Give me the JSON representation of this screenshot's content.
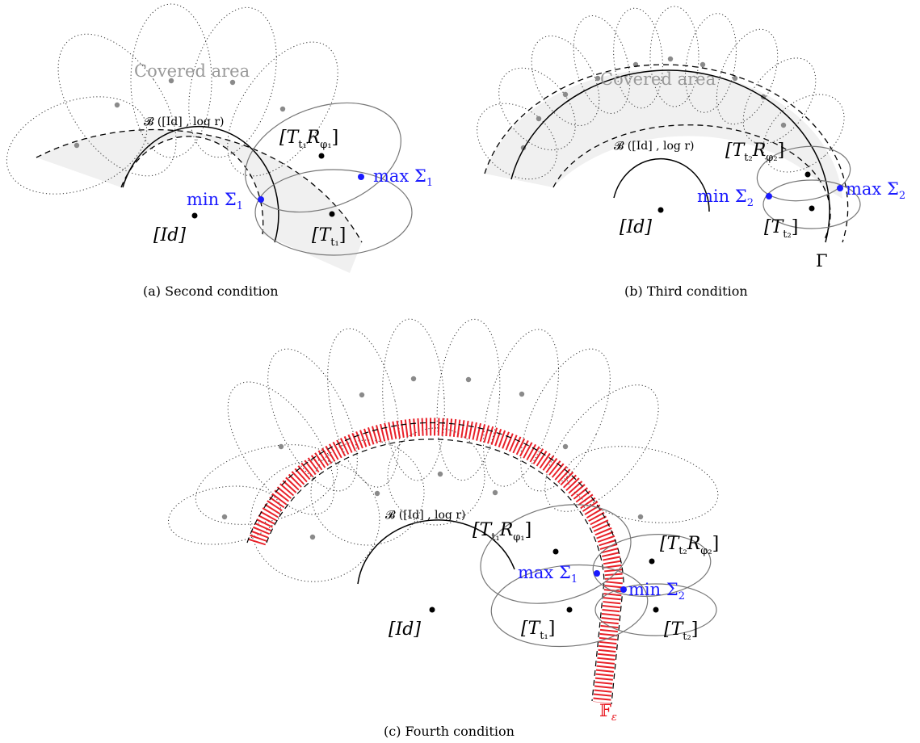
{
  "panels": {
    "a": {
      "caption": "(a) Second condition",
      "covered_label": "Covered area",
      "ball_label": "𝓑 ([Id] , log r)",
      "t_label": "[T",
      "t_sub": "t₁",
      "tr_label": "[T",
      "tr_sub": "t₁",
      "tr_r": "R",
      "tr_rsub": "φ₁",
      "id_label": "[Id]",
      "min_label": "min Σ",
      "min_sub": "1",
      "max_label": "max Σ",
      "max_sub": "1"
    },
    "b": {
      "caption": "(b) Third condition",
      "covered_label": "Covered area",
      "ball_label": "𝓑 ([Id] , log r)",
      "t_label": "[T",
      "t_sub": "t₂",
      "tr_label": "[T",
      "tr_sub": "t₂",
      "tr_r": "R",
      "tr_rsub": "φ₂",
      "id_label": "[Id]",
      "min_label": "min Σ",
      "min_sub": "2",
      "max_label": "max Σ",
      "max_sub": "2",
      "gamma_label": "Γ"
    },
    "c": {
      "caption": "(c) Fourth condition",
      "ball_label": "𝓑 ([Id] , log r)",
      "t1_label": "[T",
      "t1_sub": "t₁",
      "t1r_label": "[T",
      "t1r_sub": "t₁",
      "t1r_r": "R",
      "t1r_rsub": "φ₁",
      "t2_label": "[T",
      "t2_sub": "t₂",
      "t2r_label": "[T",
      "t2r_sub": "t₂",
      "t2r_r": "R",
      "t2r_rsub": "φ₂",
      "id_label": "[Id]",
      "max_label": "max Σ",
      "max_sub": "1",
      "min_label": "min Σ",
      "min_sub": "2",
      "f_label": "𝔽",
      "f_sub": "ε"
    }
  },
  "colors": {
    "blue": "#1a1aff",
    "red": "#e8141c",
    "grey_fill": "#f0f0f0",
    "grey_text": "#9a9a9a",
    "grey_dot": "#8a8a8a"
  }
}
